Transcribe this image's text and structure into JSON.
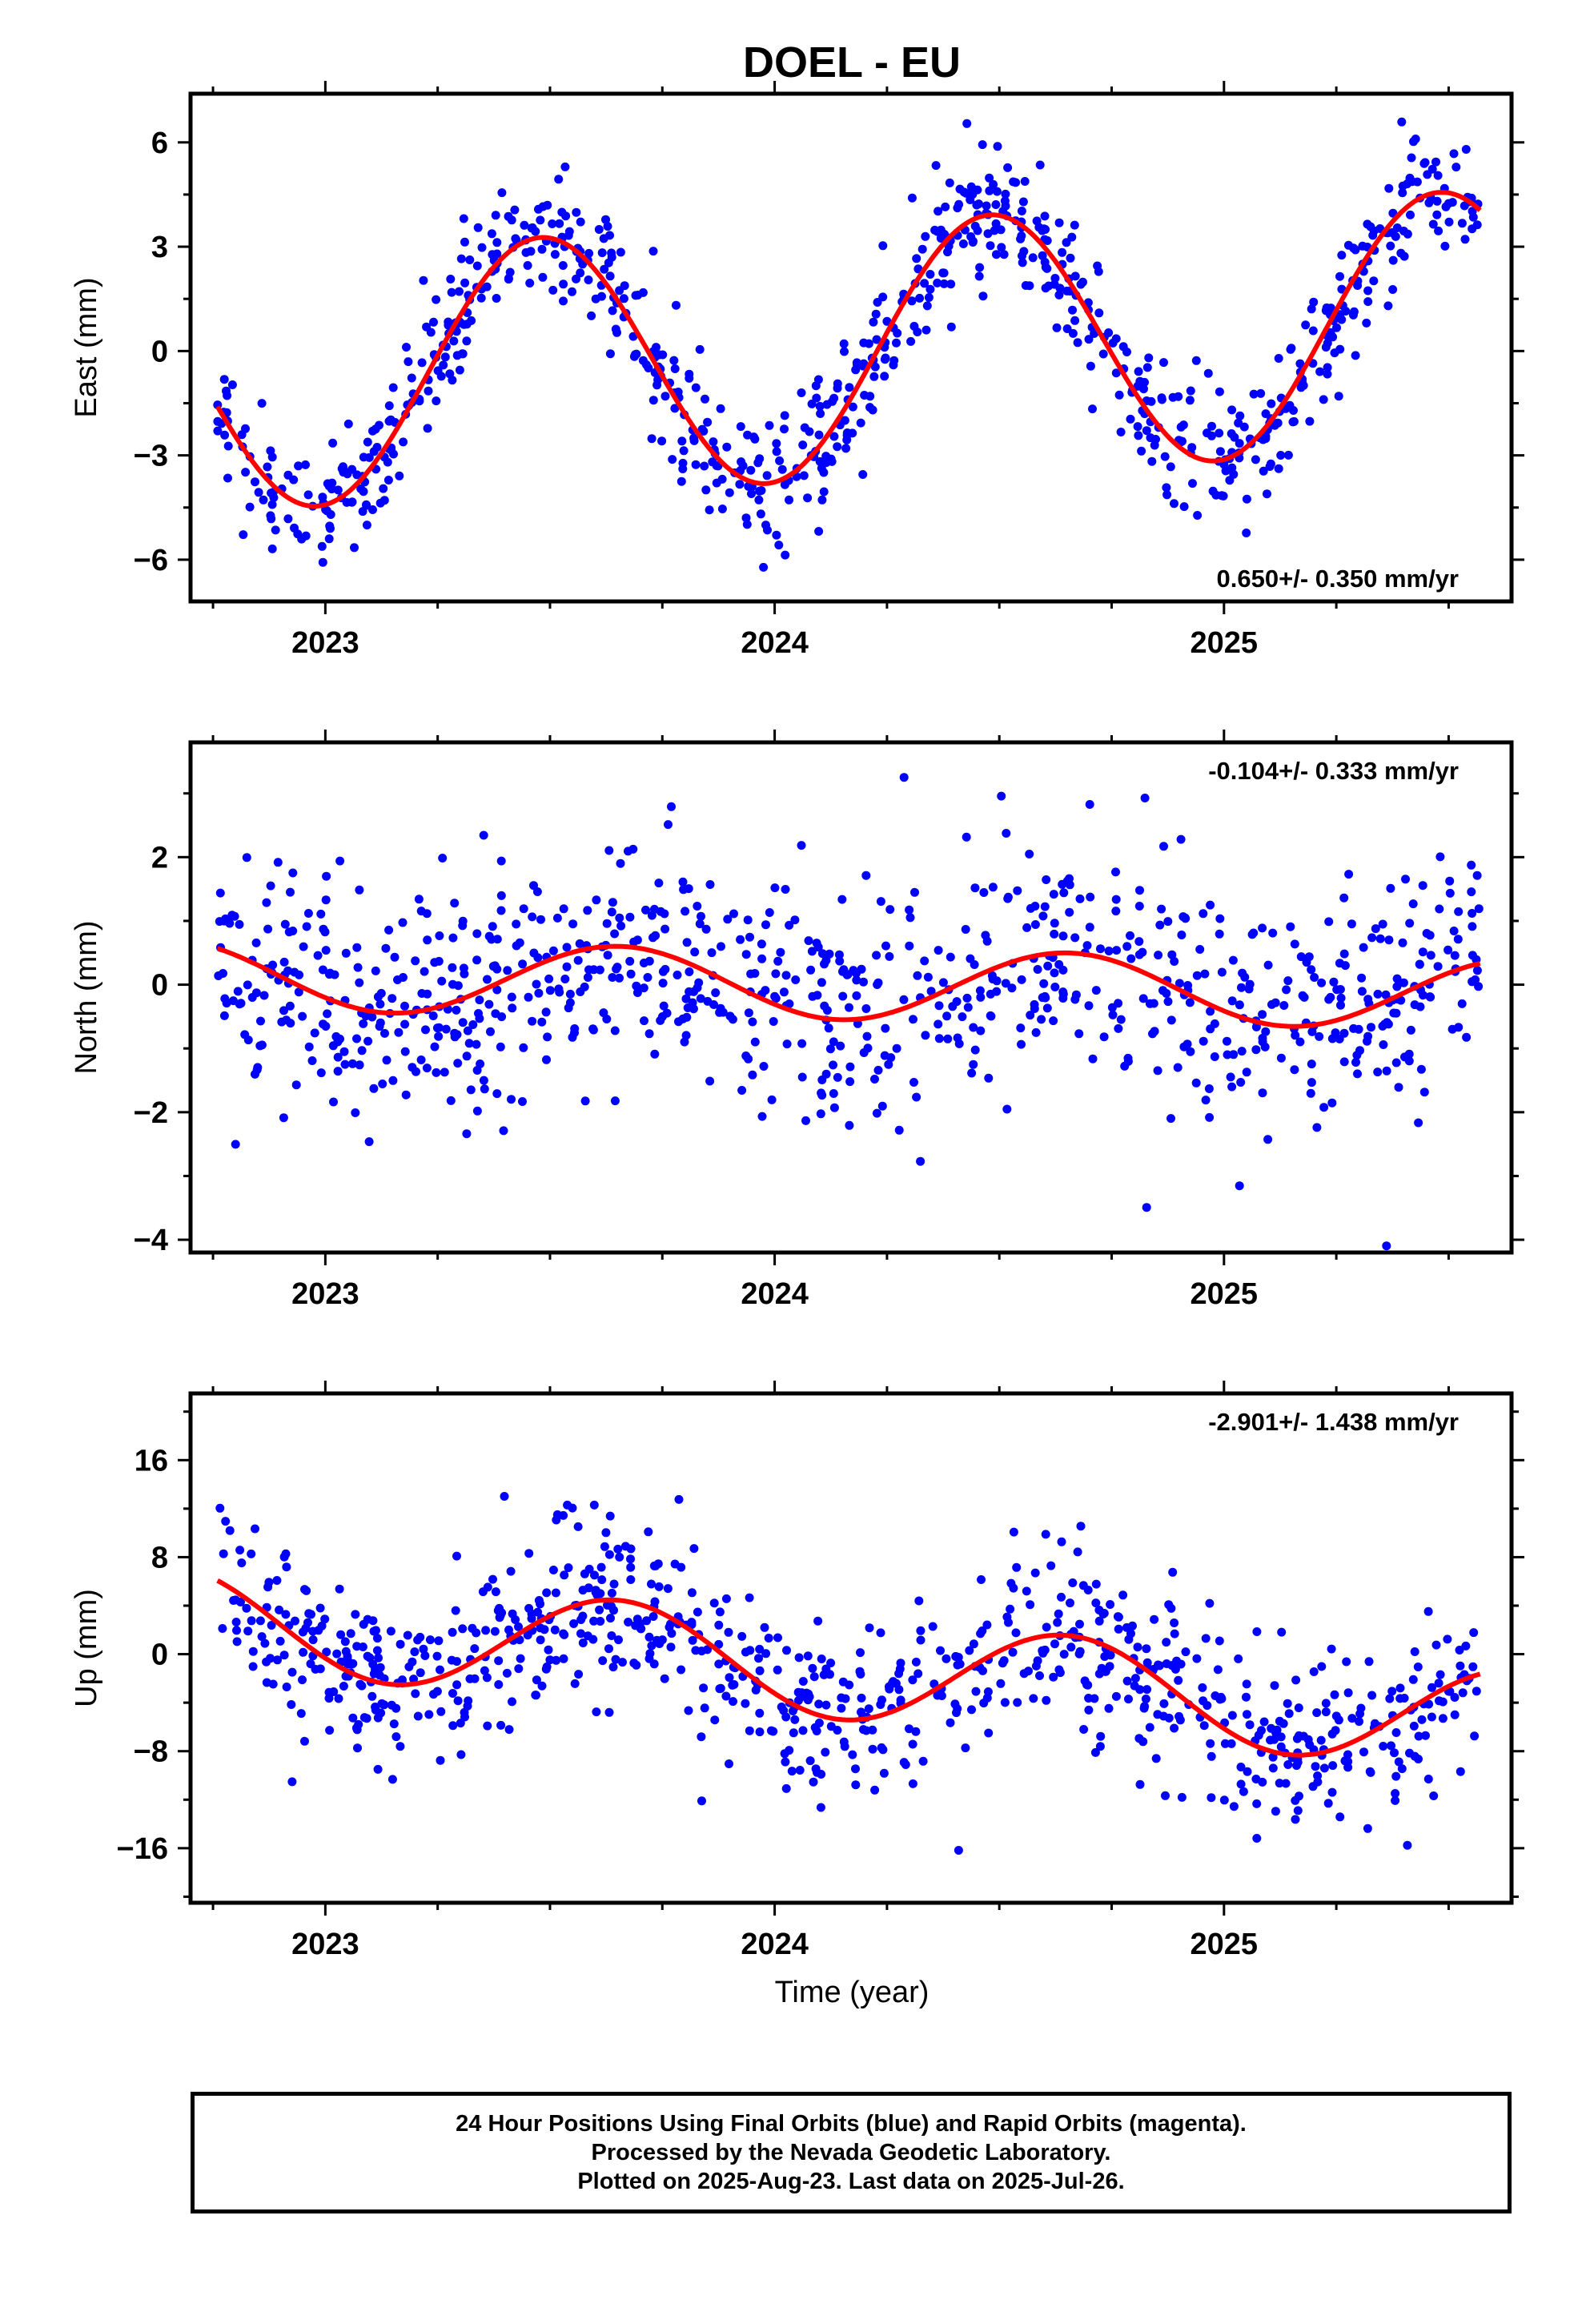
{
  "title": "DOEL - EU",
  "xlabel": "Time (year)",
  "footer": {
    "line1": "24 Hour Positions Using Final Orbits (blue) and Rapid Orbits (magenta).",
    "line2": "Processed by the Nevada Geodetic Laboratory.",
    "line3": "Plotted on 2025-Aug-23. Last data on 2025-Jul-26."
  },
  "colors": {
    "points": "#0000ff",
    "fit": "#ff0000",
    "frame": "#000000"
  },
  "chart_data": [
    {
      "type": "scatter",
      "ylabel": "East (mm)",
      "xlim": [
        2022.7,
        2025.64
      ],
      "ylim": [
        -7.2,
        7.4
      ],
      "xticks": [
        2023,
        2024,
        2025
      ],
      "yticks": [
        -6,
        -3,
        0,
        3,
        6
      ],
      "yticklabels": [
        "−6",
        "−3",
        "0",
        "3",
        "6"
      ],
      "rate_label": "0.650+/- 0.350 mm/yr",
      "rate_position": "bottom-right",
      "trend": {
        "x0": 2024.15,
        "intercept": 0.0,
        "slope": 0.65,
        "amplitude": 3.7,
        "peak": 2023.48,
        "scatter": 0.9
      },
      "series": [
        {
          "name": "Final Orbits",
          "x_start": 2022.76,
          "x_end": 2025.57,
          "count": 860
        }
      ]
    },
    {
      "type": "scatter",
      "ylabel": "North (mm)",
      "xlim": [
        2022.7,
        2025.64
      ],
      "ylim": [
        -4.2,
        3.8
      ],
      "xticks": [
        2023,
        2024,
        2025
      ],
      "yticks": [
        -4,
        -2,
        0,
        2
      ],
      "yticklabels": [
        "−4",
        "−2",
        "0",
        "2"
      ],
      "rate_label": "-0.104+/- 0.333 mm/yr",
      "rate_position": "top-right",
      "trend": {
        "x0": 2024.15,
        "intercept": 0.0,
        "slope": -0.104,
        "amplitude": 0.55,
        "peak": 2023.65,
        "scatter": 0.95
      },
      "series": [
        {
          "name": "Final Orbits",
          "x_start": 2022.76,
          "x_end": 2025.57,
          "count": 860
        }
      ]
    },
    {
      "type": "scatter",
      "ylabel": "Up (mm)",
      "xlim": [
        2022.7,
        2025.64
      ],
      "ylim": [
        -20.5,
        21.5
      ],
      "xticks": [
        2023,
        2024,
        2025
      ],
      "yticks": [
        -16,
        -8,
        0,
        8,
        16
      ],
      "yticklabels": [
        "−16",
        "−8",
        "0",
        "8",
        "16"
      ],
      "rate_label": "-2.901+/- 1.438 mm/yr",
      "rate_position": "top-right",
      "trend": {
        "x0": 2024.15,
        "intercept": -1.2,
        "slope": -2.901,
        "amplitude": 4.2,
        "peak": 2023.65,
        "scatter": 3.6
      },
      "series": [
        {
          "name": "Final Orbits",
          "x_start": 2022.76,
          "x_end": 2025.57,
          "count": 860
        }
      ]
    }
  ]
}
